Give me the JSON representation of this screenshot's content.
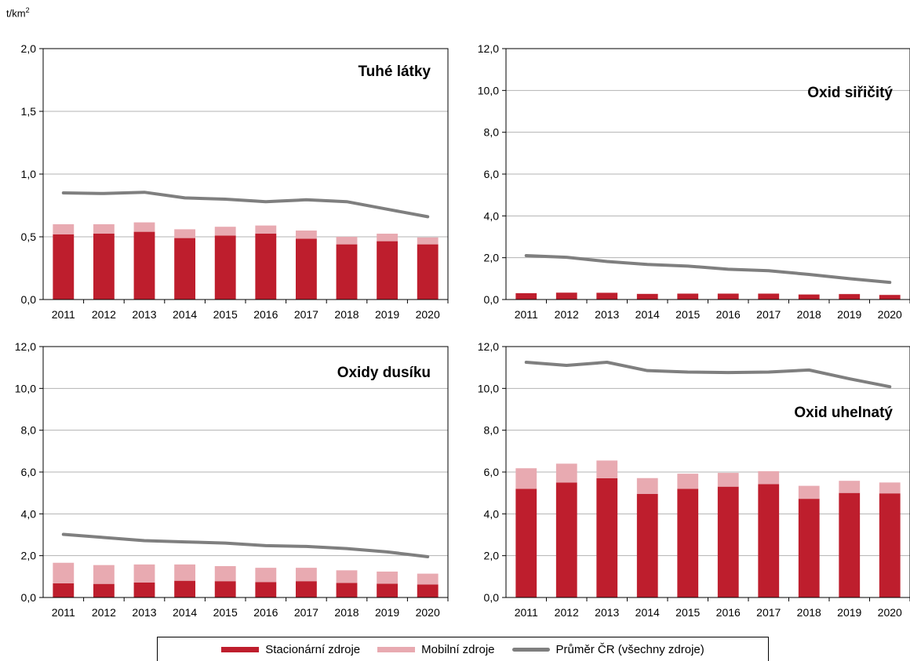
{
  "unit": {
    "base": "t/km",
    "sup": "2"
  },
  "colors": {
    "stationary": "#be1e2d",
    "mobile": "#e8aab1",
    "average": "#7f7f7f"
  },
  "legend": {
    "stationary": "Stacionární zdroje",
    "mobile": "Mobilní zdroje",
    "average": "Průměr ČR (všechny zdroje)"
  },
  "chart_data": [
    {
      "type": "bar",
      "title": "Tuhé látky",
      "ylim": [
        0,
        2.0
      ],
      "yticks": [
        "0,0",
        "0,5",
        "1,0",
        "1,5",
        "2,0"
      ],
      "categories": [
        "2011",
        "2012",
        "2013",
        "2014",
        "2015",
        "2016",
        "2017",
        "2018",
        "2019",
        "2020"
      ],
      "series": [
        {
          "name": "Stacionární zdroje",
          "kind": "bar-stack",
          "values": [
            0.52,
            0.525,
            0.54,
            0.49,
            0.51,
            0.525,
            0.485,
            0.44,
            0.465,
            0.44
          ]
        },
        {
          "name": "Mobilní zdroje",
          "kind": "bar-stack",
          "values": [
            0.08,
            0.075,
            0.075,
            0.07,
            0.07,
            0.065,
            0.065,
            0.06,
            0.06,
            0.055
          ]
        },
        {
          "name": "Průměr ČR (všechny zdroje)",
          "kind": "line",
          "values": [
            0.85,
            0.845,
            0.855,
            0.81,
            0.8,
            0.78,
            0.795,
            0.78,
            0.72,
            0.66
          ]
        }
      ]
    },
    {
      "type": "bar",
      "title": "Oxid siřičitý",
      "ylim": [
        0,
        12.0
      ],
      "yticks": [
        "0,0",
        "2,0",
        "4,0",
        "6,0",
        "8,0",
        "10,0",
        "12,0"
      ],
      "categories": [
        "2011",
        "2012",
        "2013",
        "2014",
        "2015",
        "2016",
        "2017",
        "2018",
        "2019",
        "2020"
      ],
      "series": [
        {
          "name": "Stacionární zdroje",
          "kind": "bar-stack",
          "values": [
            0.3,
            0.33,
            0.32,
            0.27,
            0.28,
            0.28,
            0.28,
            0.24,
            0.26,
            0.22
          ]
        },
        {
          "name": "Mobilní zdroje",
          "kind": "bar-stack",
          "values": [
            0.01,
            0.01,
            0.01,
            0.01,
            0.01,
            0.01,
            0.01,
            0.01,
            0.01,
            0.01
          ]
        },
        {
          "name": "Průměr ČR (všechny zdroje)",
          "kind": "line",
          "values": [
            2.1,
            2.02,
            1.82,
            1.68,
            1.6,
            1.45,
            1.38,
            1.2,
            1.0,
            0.82
          ]
        }
      ]
    },
    {
      "type": "bar",
      "title": "Oxidy dusíku",
      "ylim": [
        0,
        12.0
      ],
      "yticks": [
        "0,0",
        "2,0",
        "4,0",
        "6,0",
        "8,0",
        "10,0",
        "12,0"
      ],
      "categories": [
        "2011",
        "2012",
        "2013",
        "2014",
        "2015",
        "2016",
        "2017",
        "2018",
        "2019",
        "2020"
      ],
      "series": [
        {
          "name": "Stacionární zdroje",
          "kind": "bar-stack",
          "values": [
            0.68,
            0.65,
            0.72,
            0.8,
            0.78,
            0.74,
            0.78,
            0.7,
            0.66,
            0.62
          ]
        },
        {
          "name": "Mobilní zdroje",
          "kind": "bar-stack",
          "values": [
            0.98,
            0.9,
            0.86,
            0.78,
            0.72,
            0.68,
            0.64,
            0.6,
            0.58,
            0.52
          ]
        },
        {
          "name": "Průměr ČR (všechny zdroje)",
          "kind": "line",
          "values": [
            3.02,
            2.87,
            2.72,
            2.66,
            2.6,
            2.48,
            2.44,
            2.34,
            2.18,
            1.95
          ]
        }
      ]
    },
    {
      "type": "bar",
      "title": "Oxid uhelnatý",
      "ylim": [
        0,
        12.0
      ],
      "yticks": [
        "0,0",
        "2,0",
        "4,0",
        "6,0",
        "8,0",
        "10,0",
        "12,0"
      ],
      "categories": [
        "2011",
        "2012",
        "2013",
        "2014",
        "2015",
        "2016",
        "2017",
        "2018",
        "2019",
        "2020"
      ],
      "series": [
        {
          "name": "Stacionární zdroje",
          "kind": "bar-stack",
          "values": [
            5.2,
            5.5,
            5.7,
            4.95,
            5.2,
            5.3,
            5.42,
            4.72,
            5.0,
            4.98
          ]
        },
        {
          "name": "Mobilní zdroje",
          "kind": "bar-stack",
          "values": [
            0.98,
            0.9,
            0.85,
            0.76,
            0.72,
            0.66,
            0.62,
            0.62,
            0.58,
            0.52
          ]
        },
        {
          "name": "Průměr ČR (všechny zdroje)",
          "kind": "line",
          "values": [
            11.25,
            11.1,
            11.25,
            10.85,
            10.78,
            10.76,
            10.78,
            10.88,
            10.46,
            10.08
          ]
        }
      ]
    }
  ]
}
